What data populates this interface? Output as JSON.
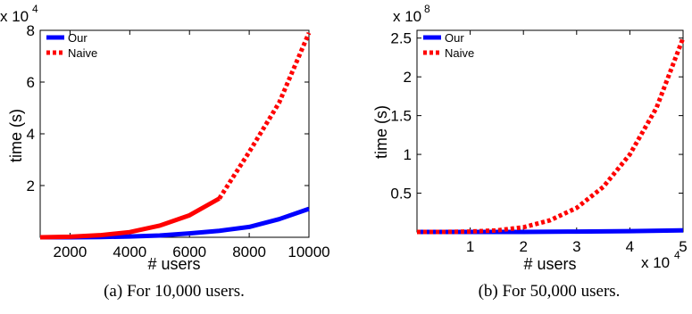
{
  "chart_data": [
    {
      "type": "line",
      "caption": "(a) For 10,000 users.",
      "xlabel": "# users",
      "ylabel": "time (s)",
      "y_exponent": {
        "base": "x 10",
        "power": "4"
      },
      "xlim": [
        1000,
        10000
      ],
      "ylim": [
        0,
        8
      ],
      "xticks": [
        2000,
        4000,
        6000,
        8000,
        10000
      ],
      "xtick_labels": [
        "2000",
        "4000",
        "6000",
        "8000",
        "10000"
      ],
      "yticks": [
        2,
        4,
        6,
        8
      ],
      "ytick_labels": [
        "2",
        "4",
        "6",
        "8"
      ],
      "legend_position": "top-left",
      "series": [
        {
          "name": "Our",
          "color": "#0000ff",
          "style": "solid",
          "x": [
            1000,
            2000,
            3000,
            4000,
            5000,
            6000,
            7000,
            8000,
            9000,
            10000
          ],
          "y": [
            0.0,
            0.0,
            0.01,
            0.03,
            0.07,
            0.15,
            0.25,
            0.4,
            0.7,
            1.1
          ]
        },
        {
          "name": "Naive",
          "color": "#ff0000",
          "style": "solid-then-dotted",
          "x": [
            1000,
            2000,
            3000,
            4000,
            5000,
            6000,
            7000,
            8000,
            9000,
            10000
          ],
          "y": [
            0.0,
            0.02,
            0.08,
            0.2,
            0.45,
            0.85,
            1.5,
            3.3,
            5.2,
            7.9
          ]
        }
      ]
    },
    {
      "type": "line",
      "caption": "(b) For 50,000 users.",
      "xlabel": "# users",
      "ylabel": "time (s)",
      "y_exponent": {
        "base": "x 10",
        "power": "8"
      },
      "x_exponent": {
        "base": "x 10",
        "power": "4"
      },
      "xlim": [
        0,
        5
      ],
      "ylim": [
        0,
        2.6
      ],
      "xticks": [
        1,
        2,
        3,
        4,
        5
      ],
      "xtick_labels": [
        "1",
        "2",
        "3",
        "4",
        "5"
      ],
      "yticks": [
        0.5,
        1,
        1.5,
        2,
        2.5
      ],
      "ytick_labels": [
        "0.5",
        "1",
        "1.5",
        "2",
        "2.5"
      ],
      "legend_position": "top-left",
      "series": [
        {
          "name": "Our",
          "color": "#0000ff",
          "style": "solid",
          "x": [
            0,
            1,
            2,
            3,
            4,
            5
          ],
          "y": [
            0.0,
            0.0,
            0.0,
            0.005,
            0.01,
            0.02
          ]
        },
        {
          "name": "Naive",
          "color": "#ff0000",
          "style": "dotted",
          "x": [
            0,
            0.5,
            1,
            1.5,
            2,
            2.5,
            3,
            3.5,
            4,
            4.5,
            5
          ],
          "y": [
            0.0,
            0.0,
            0.005,
            0.02,
            0.06,
            0.15,
            0.31,
            0.58,
            1.0,
            1.6,
            2.5
          ]
        }
      ]
    }
  ]
}
